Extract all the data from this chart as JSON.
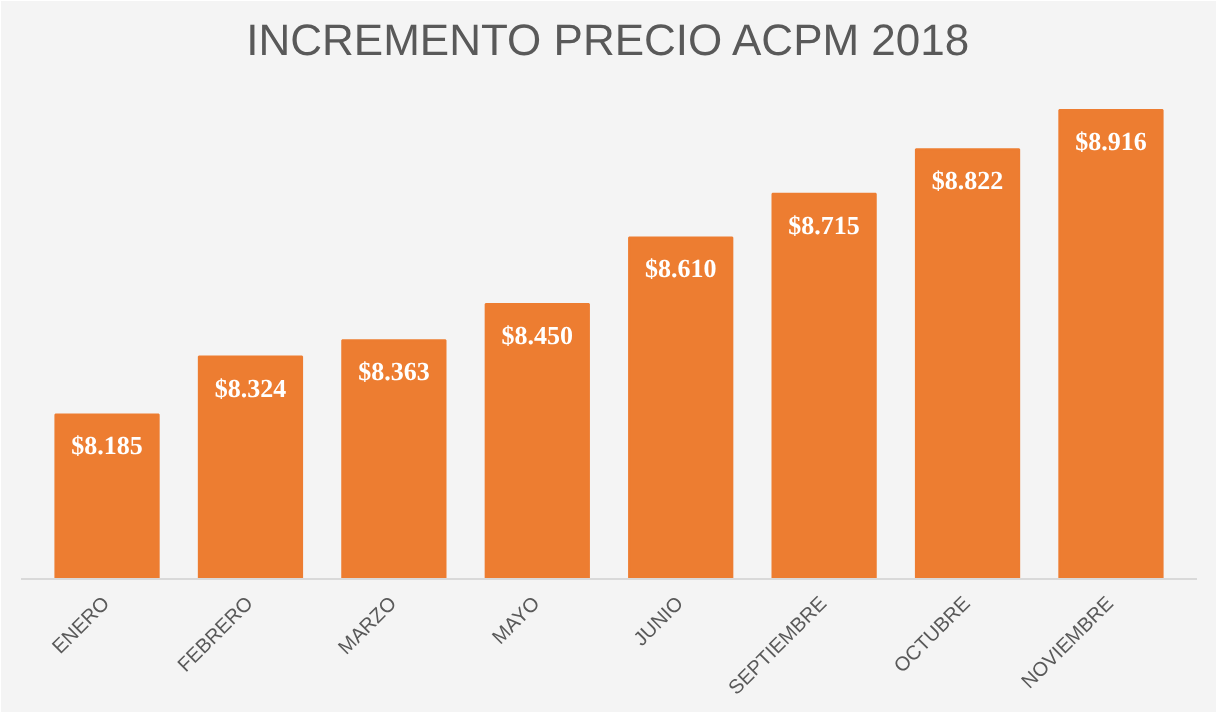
{
  "chart_data": {
    "type": "bar",
    "title": "INCREMENTO PRECIO ACPM 2018",
    "categories": [
      "ENERO",
      "FEBRERO",
      "MARZO",
      "MAYO",
      "JUNIO",
      "SEPTIEMBRE",
      "OCTUBRE",
      "NOVIEMBRE"
    ],
    "values": [
      8185,
      8324,
      8363,
      8450,
      8610,
      8715,
      8822,
      8916
    ],
    "value_labels": [
      "$8.185",
      "$8.324",
      "$8.363",
      "$8.450",
      "$8.610",
      "$8.715",
      "$8.822",
      "$8.916"
    ],
    "color": "#ed7d31",
    "ylim": [
      7790,
      9000
    ],
    "tick_labels": "x",
    "grid": false
  }
}
